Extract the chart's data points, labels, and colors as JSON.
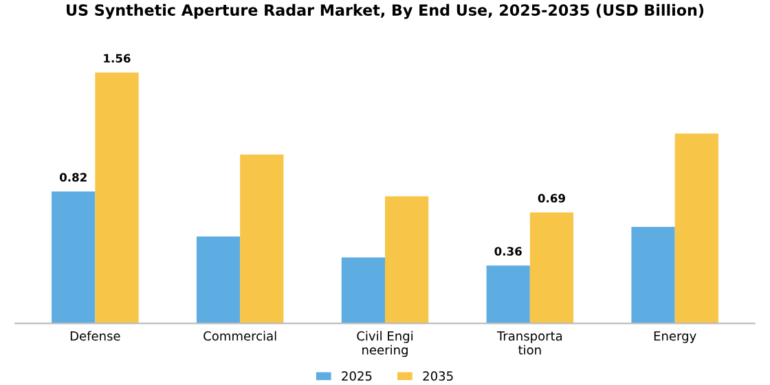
{
  "chart_data": {
    "type": "bar",
    "title": "US Synthetic Aperture Radar Market, By End Use, 2025-2035 (USD Billion)",
    "categories": [
      "Defense",
      "Commercial",
      "Civil Engi\nneering",
      "Transporta\ntion",
      "Energy"
    ],
    "series": [
      {
        "name": "2025",
        "color": "#5dade2",
        "values": [
          0.82,
          0.54,
          0.41,
          0.36,
          0.6
        ],
        "value_labels": [
          "0.82",
          null,
          null,
          "0.36",
          null
        ]
      },
      {
        "name": "2035",
        "color": "#f7c548",
        "values": [
          1.56,
          1.05,
          0.79,
          0.69,
          1.18
        ],
        "value_labels": [
          "1.56",
          null,
          null,
          "0.69",
          null
        ]
      }
    ],
    "legend": "bottom",
    "grid": false,
    "tick_labels": "x"
  }
}
